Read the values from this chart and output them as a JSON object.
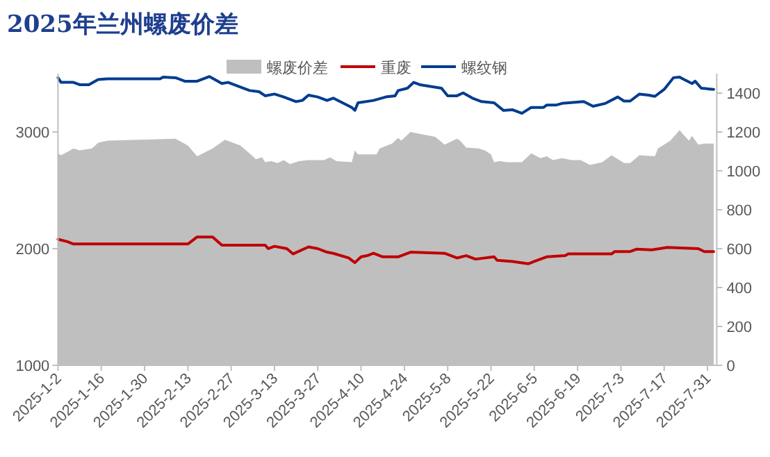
{
  "chart_data": {
    "type": "line",
    "title": "2025年兰州螺废价差",
    "legend": "top",
    "xlim": [
      "2025-01-02",
      "2025-08-03"
    ],
    "xticks": [
      {
        "value": "2025-01-02",
        "label": "2025-1-2"
      },
      {
        "value": "2025-01-16",
        "label": "2025-1-16"
      },
      {
        "value": "2025-01-30",
        "label": "2025-1-30"
      },
      {
        "value": "2025-02-13",
        "label": "2025-2-13"
      },
      {
        "value": "2025-02-27",
        "label": "2025-2-27"
      },
      {
        "value": "2025-03-13",
        "label": "2025-3-13"
      },
      {
        "value": "2025-03-27",
        "label": "2025-3-27"
      },
      {
        "value": "2025-04-10",
        "label": "2025-4-10"
      },
      {
        "value": "2025-04-24",
        "label": "2025-4-24"
      },
      {
        "value": "2025-05-08",
        "label": "2025-5-8"
      },
      {
        "value": "2025-05-22",
        "label": "2025-5-22"
      },
      {
        "value": "2025-06-05",
        "label": "2025-6-5"
      },
      {
        "value": "2025-06-19",
        "label": "2025-6-19"
      },
      {
        "value": "2025-07-03",
        "label": "2025-7-3"
      },
      {
        "value": "2025-07-17",
        "label": "2025-7-17"
      },
      {
        "value": "2025-07-31",
        "label": "2025-7-31"
      }
    ],
    "ylim": [
      1000,
      3500
    ],
    "yticks": [
      1000,
      2000,
      3000
    ],
    "y2lim": [
      0,
      1500
    ],
    "y2ticks": [
      0,
      200,
      400,
      600,
      800,
      1000,
      1200,
      1400
    ],
    "series": [
      {
        "name": "螺废价差",
        "type": "area",
        "axis": "y2",
        "color": "#bfbfbf",
        "x": [
          "2025-01-02",
          "2025-01-03",
          "2025-01-06",
          "2025-01-07",
          "2025-01-09",
          "2025-01-13",
          "2025-01-15",
          "2025-01-18",
          "2025-02-09",
          "2025-02-13",
          "2025-02-16",
          "2025-02-21",
          "2025-02-25",
          "2025-03-02",
          "2025-03-06",
          "2025-03-07",
          "2025-03-09",
          "2025-03-10",
          "2025-03-12",
          "2025-03-14",
          "2025-03-16",
          "2025-03-18",
          "2025-03-21",
          "2025-03-24",
          "2025-03-29",
          "2025-03-31",
          "2025-04-02",
          "2025-04-07",
          "2025-04-08",
          "2025-04-09",
          "2025-04-13",
          "2025-04-15",
          "2025-04-16",
          "2025-04-20",
          "2025-04-22",
          "2025-04-23",
          "2025-04-26",
          "2025-04-29",
          "2025-05-04",
          "2025-05-07",
          "2025-05-11",
          "2025-05-12",
          "2025-05-14",
          "2025-05-18",
          "2025-05-20",
          "2025-05-22",
          "2025-05-23",
          "2025-05-25",
          "2025-05-27",
          "2025-06-01",
          "2025-06-04",
          "2025-06-07",
          "2025-06-09",
          "2025-06-11",
          "2025-06-14",
          "2025-06-17",
          "2025-06-20",
          "2025-06-23",
          "2025-06-27",
          "2025-06-30",
          "2025-07-04",
          "2025-07-06",
          "2025-07-09",
          "2025-07-14",
          "2025-07-15",
          "2025-07-19",
          "2025-07-22",
          "2025-07-23",
          "2025-07-25",
          "2025-07-26",
          "2025-07-28",
          "2025-07-30",
          "2025-08-02"
        ],
        "values": [
          1090,
          1080,
          1105,
          1115,
          1105,
          1115,
          1145,
          1155,
          1165,
          1130,
          1075,
          1115,
          1160,
          1130,
          1075,
          1060,
          1070,
          1045,
          1050,
          1040,
          1055,
          1035,
          1050,
          1055,
          1055,
          1070,
          1050,
          1045,
          1105,
          1085,
          1085,
          1085,
          1115,
          1140,
          1170,
          1155,
          1200,
          1190,
          1175,
          1135,
          1165,
          1155,
          1120,
          1115,
          1105,
          1085,
          1045,
          1050,
          1045,
          1045,
          1090,
          1065,
          1075,
          1055,
          1065,
          1055,
          1055,
          1030,
          1045,
          1080,
          1040,
          1040,
          1080,
          1075,
          1115,
          1155,
          1210,
          1190,
          1155,
          1180,
          1135,
          1140,
          1140
        ]
      },
      {
        "name": "重废",
        "color": "#c00000",
        "x": [
          "2025-01-02",
          "2025-01-05",
          "2025-01-07",
          "2025-02-13",
          "2025-02-16",
          "2025-02-21",
          "2025-02-24",
          "2025-03-10",
          "2025-03-11",
          "2025-03-13",
          "2025-03-17",
          "2025-03-19",
          "2025-03-24",
          "2025-03-27",
          "2025-03-30",
          "2025-04-01",
          "2025-04-06",
          "2025-04-08",
          "2025-04-10",
          "2025-04-12",
          "2025-04-14",
          "2025-04-17",
          "2025-04-22",
          "2025-04-26",
          "2025-05-07",
          "2025-05-11",
          "2025-05-14",
          "2025-05-17",
          "2025-05-23",
          "2025-05-24",
          "2025-05-29",
          "2025-06-03",
          "2025-06-05",
          "2025-06-09",
          "2025-06-15",
          "2025-06-16",
          "2025-06-30",
          "2025-07-01",
          "2025-07-06",
          "2025-07-08",
          "2025-07-13",
          "2025-07-18",
          "2025-07-28",
          "2025-07-30",
          "2025-08-02"
        ],
        "values": [
          2080,
          2060,
          2040,
          2040,
          2100,
          2100,
          2030,
          2030,
          2000,
          2020,
          2000,
          1955,
          2015,
          2000,
          1970,
          1960,
          1920,
          1880,
          1930,
          1940,
          1960,
          1930,
          1930,
          1970,
          1960,
          1920,
          1940,
          1910,
          1930,
          1900,
          1890,
          1870,
          1890,
          1930,
          1940,
          1955,
          1955,
          1975,
          1975,
          1995,
          1990,
          2010,
          2000,
          1975,
          1975
        ]
      },
      {
        "name": "螺纹钢",
        "color": "#003c8f",
        "x": [
          "2025-01-02",
          "2025-01-03",
          "2025-01-07",
          "2025-01-09",
          "2025-01-12",
          "2025-01-15",
          "2025-01-18",
          "2025-02-04",
          "2025-02-05",
          "2025-02-09",
          "2025-02-12",
          "2025-02-16",
          "2025-02-20",
          "2025-02-24",
          "2025-02-26",
          "2025-03-02",
          "2025-03-05",
          "2025-03-08",
          "2025-03-10",
          "2025-03-13",
          "2025-03-16",
          "2025-03-20",
          "2025-03-22",
          "2025-03-24",
          "2025-03-27",
          "2025-03-30",
          "2025-04-01",
          "2025-04-07",
          "2025-04-08",
          "2025-04-09",
          "2025-04-14",
          "2025-04-18",
          "2025-04-21",
          "2025-04-22",
          "2025-04-25",
          "2025-04-27",
          "2025-04-29",
          "2025-05-06",
          "2025-05-08",
          "2025-05-11",
          "2025-05-13",
          "2025-05-16",
          "2025-05-19",
          "2025-05-23",
          "2025-05-26",
          "2025-05-29",
          "2025-06-01",
          "2025-06-04",
          "2025-06-08",
          "2025-06-09",
          "2025-06-12",
          "2025-06-14",
          "2025-06-21",
          "2025-06-24",
          "2025-06-28",
          "2025-07-02",
          "2025-07-04",
          "2025-07-06",
          "2025-07-09",
          "2025-07-12",
          "2025-07-14",
          "2025-07-17",
          "2025-07-20",
          "2025-07-22",
          "2025-07-23",
          "2025-07-26",
          "2025-07-27",
          "2025-07-29",
          "2025-08-02"
        ],
        "values": [
          3465,
          3425,
          3425,
          3405,
          3405,
          3450,
          3455,
          3455,
          3470,
          3465,
          3435,
          3435,
          3475,
          3415,
          3425,
          3385,
          3355,
          3345,
          3310,
          3325,
          3300,
          3260,
          3270,
          3315,
          3300,
          3270,
          3290,
          3210,
          3185,
          3250,
          3270,
          3300,
          3310,
          3355,
          3375,
          3425,
          3405,
          3375,
          3310,
          3310,
          3335,
          3290,
          3260,
          3250,
          3185,
          3190,
          3160,
          3210,
          3210,
          3230,
          3230,
          3245,
          3260,
          3220,
          3245,
          3300,
          3265,
          3265,
          3325,
          3315,
          3305,
          3365,
          3465,
          3470,
          3455,
          3415,
          3435,
          3375,
          3365
        ]
      }
    ]
  }
}
